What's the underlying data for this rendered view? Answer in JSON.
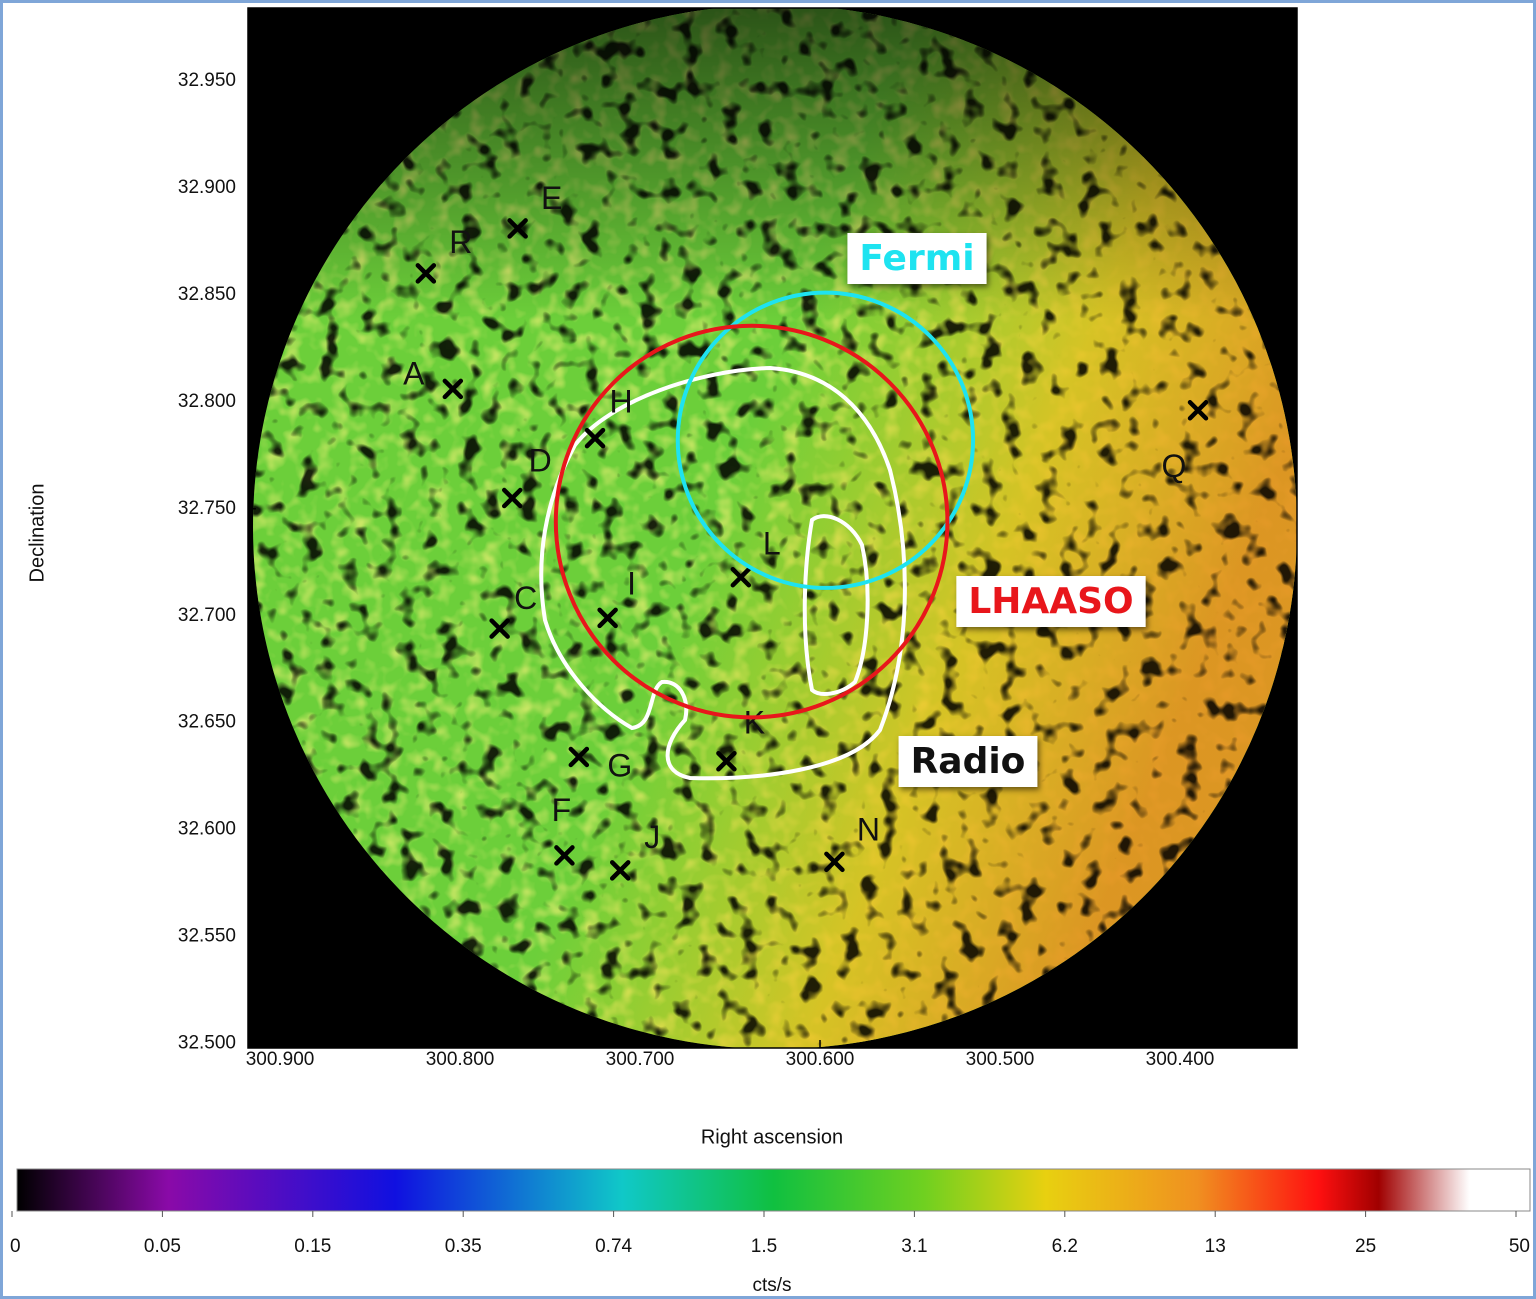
{
  "chart_data": {
    "type": "scatter",
    "xlabel": "Right ascension",
    "ylabel": "Declination",
    "xlim": [
      300.9178,
      300.335
    ],
    "ylim": [
      32.498,
      32.984
    ],
    "xticks": [
      {
        "value": 300.9,
        "label": "300.900"
      },
      {
        "value": 300.8,
        "label": "300.800"
      },
      {
        "value": 300.7,
        "label": "300.700"
      },
      {
        "value": 300.6,
        "label": "300.600"
      },
      {
        "value": 300.5,
        "label": "300.500"
      },
      {
        "value": 300.4,
        "label": "300.400"
      }
    ],
    "yticks": [
      {
        "value": 32.5,
        "label": "32.500"
      },
      {
        "value": 32.55,
        "label": "32.550"
      },
      {
        "value": 32.6,
        "label": "32.600"
      },
      {
        "value": 32.65,
        "label": "32.650"
      },
      {
        "value": 32.7,
        "label": "32.700"
      },
      {
        "value": 32.75,
        "label": "32.750"
      },
      {
        "value": 32.8,
        "label": "32.800"
      },
      {
        "value": 32.85,
        "label": "32.850"
      },
      {
        "value": 32.9,
        "label": "32.900"
      },
      {
        "value": 32.95,
        "label": "32.950"
      }
    ],
    "marker_color": "#000000",
    "labels": [
      "R",
      "E",
      "A",
      "H",
      "D",
      "C",
      "I",
      "L",
      "G",
      "K",
      "F",
      "J",
      "N",
      "Q"
    ],
    "x": [
      300.819,
      300.768,
      300.804,
      300.725,
      300.771,
      300.778,
      300.718,
      300.644,
      300.734,
      300.652,
      300.742,
      300.711,
      300.592,
      300.39
    ],
    "values": [
      32.86,
      32.881,
      32.806,
      32.783,
      32.755,
      32.694,
      32.699,
      32.718,
      32.634,
      32.632,
      32.588,
      32.581,
      32.585,
      32.796
    ],
    "regions": [
      {
        "name": "Fermi",
        "color": "#1ee3f0",
        "x": 300.597,
        "y": 32.782,
        "r": 0.069
      },
      {
        "name": "LHAASO",
        "color": "#e8161b",
        "x": 300.638,
        "y": 32.744,
        "r": 0.0915
      }
    ],
    "radio_label": "Radio",
    "colorbar": {
      "label": "cts/s",
      "ticks": [
        0,
        0.05,
        0.15,
        0.35,
        0.74,
        1.5,
        3.1,
        6.2,
        13,
        25,
        50
      ]
    }
  }
}
